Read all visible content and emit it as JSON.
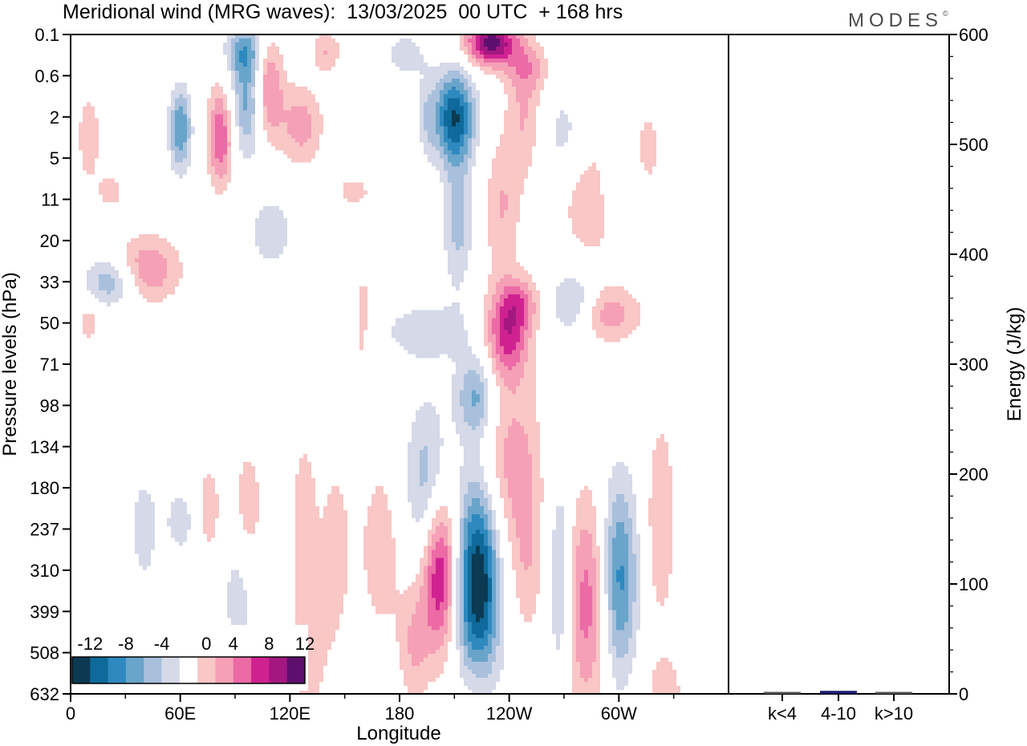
{
  "header": {
    "title": "Meridional wind (MRG waves):  13/03/2025  00 UTC  + 168 hrs",
    "brand": "MODES",
    "brand_mark": "©"
  },
  "colors": {
    "levels": [
      "#0b3a52",
      "#0e6a9a",
      "#2e89bf",
      "#69a4cb",
      "#a8c0dc",
      "#d5d9e8",
      "#ffffff",
      "#f8c7c6",
      "#f5a0b6",
      "#ec6aa6",
      "#cf2290",
      "#a31780",
      "#5e0f6e"
    ],
    "frame": "#000000",
    "energy_bar": "#1a1a6e"
  },
  "chart_data": [
    {
      "type": "heatmap",
      "title": "Meridional wind (MRG waves):  13/03/2025  00 UTC  + 168 hrs",
      "xlabel": "Longitude",
      "ylabel": "Pressure levels (hPa)",
      "x_ticks": [
        "0",
        "60E",
        "120E",
        "180",
        "120W",
        "60W"
      ],
      "x_tick_degrees": [
        0,
        60,
        120,
        180,
        240,
        300
      ],
      "xlim": [
        0,
        360
      ],
      "y_ticks": [
        "0.1",
        "0.6",
        "2",
        "5",
        "11",
        "20",
        "33",
        "50",
        "71",
        "98",
        "134",
        "180",
        "237",
        "310",
        "399",
        "508",
        "632"
      ],
      "colorbar": {
        "labels": [
          "-12",
          "-8",
          "-4",
          "0",
          "4",
          "8",
          "12"
        ],
        "boundaries": [
          -14,
          -12,
          -10,
          -8,
          -6,
          -4,
          -2,
          2,
          4,
          6,
          8,
          10,
          12,
          14
        ]
      },
      "features": [
        {
          "lon": 230,
          "level": 0.2,
          "value": 13,
          "dlon": 14,
          "dlev": 0.55
        },
        {
          "lon": 250,
          "level": 0.8,
          "value": 4,
          "dlon": 12,
          "dlev": 0.6
        },
        {
          "lon": 108,
          "level": 1.3,
          "value": 7,
          "dlon": 8,
          "dlev": 1.2
        },
        {
          "lon": 97,
          "level": 1.6,
          "value": -7,
          "dlon": 9,
          "dlev": 1.3
        },
        {
          "lon": 126,
          "level": 2.2,
          "value": 5,
          "dlon": 12,
          "dlev": 1.0
        },
        {
          "lon": 82,
          "level": 2.5,
          "value": 8,
          "dlon": 7,
          "dlev": 1.2
        },
        {
          "lon": 60,
          "level": 2.3,
          "value": -8,
          "dlon": 6,
          "dlev": 1.0
        },
        {
          "lon": 95,
          "level": 0.4,
          "value": -6,
          "dlon": 10,
          "dlev": 0.6
        },
        {
          "lon": 140,
          "level": 0.4,
          "value": 4,
          "dlon": 8,
          "dlev": 0.5
        },
        {
          "lon": 183,
          "level": 0.5,
          "value": -3,
          "dlon": 12,
          "dlev": 0.6
        },
        {
          "lon": 195,
          "level": 2.0,
          "value": -3,
          "dlon": 5,
          "dlev": 1.0
        },
        {
          "lon": 210,
          "level": 2.0,
          "value": -12,
          "dlon": 11,
          "dlev": 1.1
        },
        {
          "lon": 212,
          "level": 4.5,
          "value": -5,
          "dlon": 8,
          "dlev": 1.6
        },
        {
          "lon": 222,
          "level": 8.8,
          "value": -7,
          "dlon": 11,
          "dlev": 1.0
        },
        {
          "lon": 239,
          "level": 7.2,
          "value": 9,
          "dlon": 12,
          "dlev": 1.1
        },
        {
          "lon": 236,
          "level": 4.2,
          "value": 4,
          "dlon": 10,
          "dlev": 1.6
        },
        {
          "lon": 248,
          "level": 2.0,
          "value": 4,
          "dlon": 10,
          "dlev": 1.5
        },
        {
          "lon": 270,
          "level": 2.5,
          "value": -3,
          "dlon": 12,
          "dlev": 1.2
        },
        {
          "lon": 286,
          "level": 4.0,
          "value": 4,
          "dlon": 18,
          "dlev": 1.5
        },
        {
          "lon": 300,
          "level": 3.8,
          "value": -3,
          "dlon": 12,
          "dlev": 1.0
        },
        {
          "lon": 316,
          "level": 2.8,
          "value": 3,
          "dlon": 8,
          "dlev": 1.0
        },
        {
          "lon": 10,
          "level": 2.5,
          "value": 4,
          "dlon": 6,
          "dlev": 1.0
        },
        {
          "lon": 22,
          "level": 3.8,
          "value": 3,
          "dlon": 8,
          "dlev": 0.5
        },
        {
          "lon": 42,
          "level": 5.7,
          "value": 6,
          "dlon": 18,
          "dlev": 0.8
        },
        {
          "lon": 22,
          "level": 6.0,
          "value": -6,
          "dlon": 14,
          "dlev": 0.6
        },
        {
          "lon": 10,
          "level": 7.0,
          "value": 3,
          "dlon": 6,
          "dlev": 0.6
        },
        {
          "lon": 110,
          "level": 4.8,
          "value": -3,
          "dlon": 14,
          "dlev": 1.0
        },
        {
          "lon": 155,
          "level": 3.8,
          "value": 3,
          "dlon": 10,
          "dlev": 0.4
        },
        {
          "lon": 160,
          "level": 7.0,
          "value": 3,
          "dlon": 6,
          "dlev": 1.6
        },
        {
          "lon": 195,
          "level": 7.2,
          "value": -3,
          "dlon": 30,
          "dlev": 0.8
        },
        {
          "lon": 247,
          "level": 6.5,
          "value": 4,
          "dlon": 10,
          "dlev": 0.6
        },
        {
          "lon": 275,
          "level": 6.5,
          "value": -5,
          "dlon": 12,
          "dlev": 0.8
        },
        {
          "lon": 295,
          "level": 6.8,
          "value": 5,
          "dlon": 18,
          "dlev": 0.7
        },
        {
          "lon": 195,
          "level": 11.0,
          "value": -6,
          "dlon": 12,
          "dlev": 2.0
        },
        {
          "lon": 202,
          "level": 13.0,
          "value": 11,
          "dlon": 10,
          "dlev": 2.0
        },
        {
          "lon": 223,
          "level": 13.3,
          "value": -15,
          "dlon": 12,
          "dlev": 2.6
        },
        {
          "lon": 238,
          "level": 10.5,
          "value": 5,
          "dlon": 18,
          "dlev": 2.5
        },
        {
          "lon": 250,
          "level": 13.0,
          "value": 3,
          "dlon": 8,
          "dlev": 3.0
        },
        {
          "lon": 283,
          "level": 13.8,
          "value": 7,
          "dlon": 12,
          "dlev": 2.6
        },
        {
          "lon": 300,
          "level": 13.2,
          "value": -9,
          "dlon": 10,
          "dlev": 2.4
        },
        {
          "lon": 323,
          "level": 11.8,
          "value": 4,
          "dlon": 8,
          "dlev": 2.5
        },
        {
          "lon": 268,
          "level": 13.2,
          "value": -5,
          "dlon": 6,
          "dlev": 2.5
        },
        {
          "lon": 170,
          "level": 12.5,
          "value": 3,
          "dlon": 14,
          "dlev": 2.5
        },
        {
          "lon": 145,
          "level": 12.5,
          "value": 3,
          "dlon": 8,
          "dlev": 2.3
        },
        {
          "lon": 128,
          "level": 11.5,
          "value": 3,
          "dlon": 8,
          "dlev": 2.0
        },
        {
          "lon": 130,
          "level": 15.0,
          "value": 3,
          "dlon": 12,
          "dlev": 2.0
        },
        {
          "lon": 188,
          "level": 14.8,
          "value": 4,
          "dlon": 8,
          "dlev": 1.4
        },
        {
          "lon": 97,
          "level": 11.5,
          "value": 4,
          "dlon": 8,
          "dlev": 1.5
        },
        {
          "lon": 75,
          "level": 11.6,
          "value": 4,
          "dlon": 8,
          "dlev": 1.2
        },
        {
          "lon": 62,
          "level": 11.8,
          "value": -3,
          "dlon": 12,
          "dlev": 1.0
        },
        {
          "lon": 92,
          "level": 13.5,
          "value": -3,
          "dlon": 10,
          "dlev": 2.0
        },
        {
          "lon": 40,
          "level": 12.0,
          "value": -3,
          "dlon": 8,
          "dlev": 1.5
        },
        {
          "lon": 250,
          "level": 16.0,
          "value": -3,
          "dlon": 8,
          "dlev": 1.5
        },
        {
          "lon": 222,
          "level": 16.0,
          "value": 3,
          "dlon": 10,
          "dlev": 1.5
        },
        {
          "lon": 325,
          "level": 16.0,
          "value": 3,
          "dlon": 12,
          "dlev": 1.0
        }
      ]
    },
    {
      "type": "bar",
      "ylabel": "Energy (J/kg)",
      "categories": [
        "k<4",
        "4-10",
        "k>10"
      ],
      "values": [
        0,
        2,
        0
      ],
      "ylim": [
        0,
        600
      ],
      "y_ticks": [
        "0",
        "100",
        "200",
        "300",
        "400",
        "500",
        "600"
      ]
    }
  ]
}
